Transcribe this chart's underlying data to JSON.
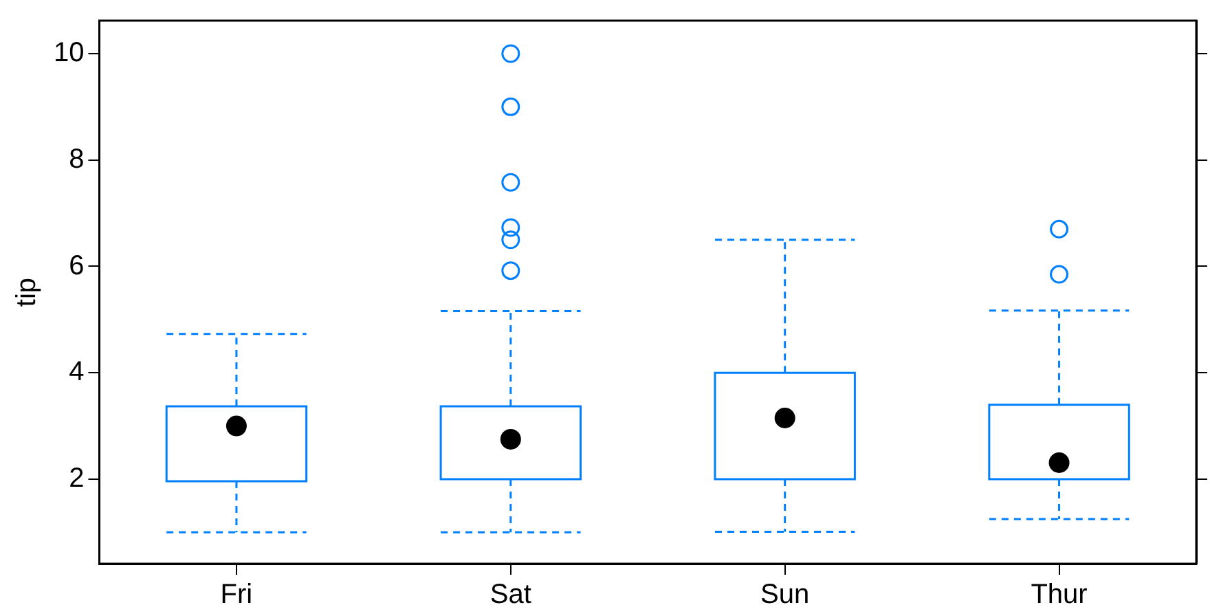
{
  "chart_data": {
    "type": "box",
    "ylabel": "tip",
    "categories": [
      "Fri",
      "Sat",
      "Sun",
      "Thur"
    ],
    "color": "#0080ff",
    "ylim": [
      0.41,
      10.62
    ],
    "yticks": [
      2,
      4,
      6,
      8,
      10
    ],
    "grid": false,
    "legend": false,
    "boxes": [
      {
        "low": 1.0,
        "q1": 1.96,
        "median": 3.0,
        "q3": 3.37,
        "high": 4.73
      },
      {
        "low": 1.0,
        "q1": 2.0,
        "median": 2.75,
        "q3": 3.37,
        "high": 5.16,
        "outliers": [
          5.92,
          6.5,
          6.73,
          7.58,
          9.0,
          10.0
        ]
      },
      {
        "low": 1.01,
        "q1": 2.0,
        "median": 3.15,
        "q3": 4.0,
        "high": 6.5
      },
      {
        "low": 1.25,
        "q1": 2.0,
        "median": 2.31,
        "q3": 3.4,
        "high": 5.17,
        "outliers": [
          5.85,
          6.7
        ]
      }
    ]
  }
}
